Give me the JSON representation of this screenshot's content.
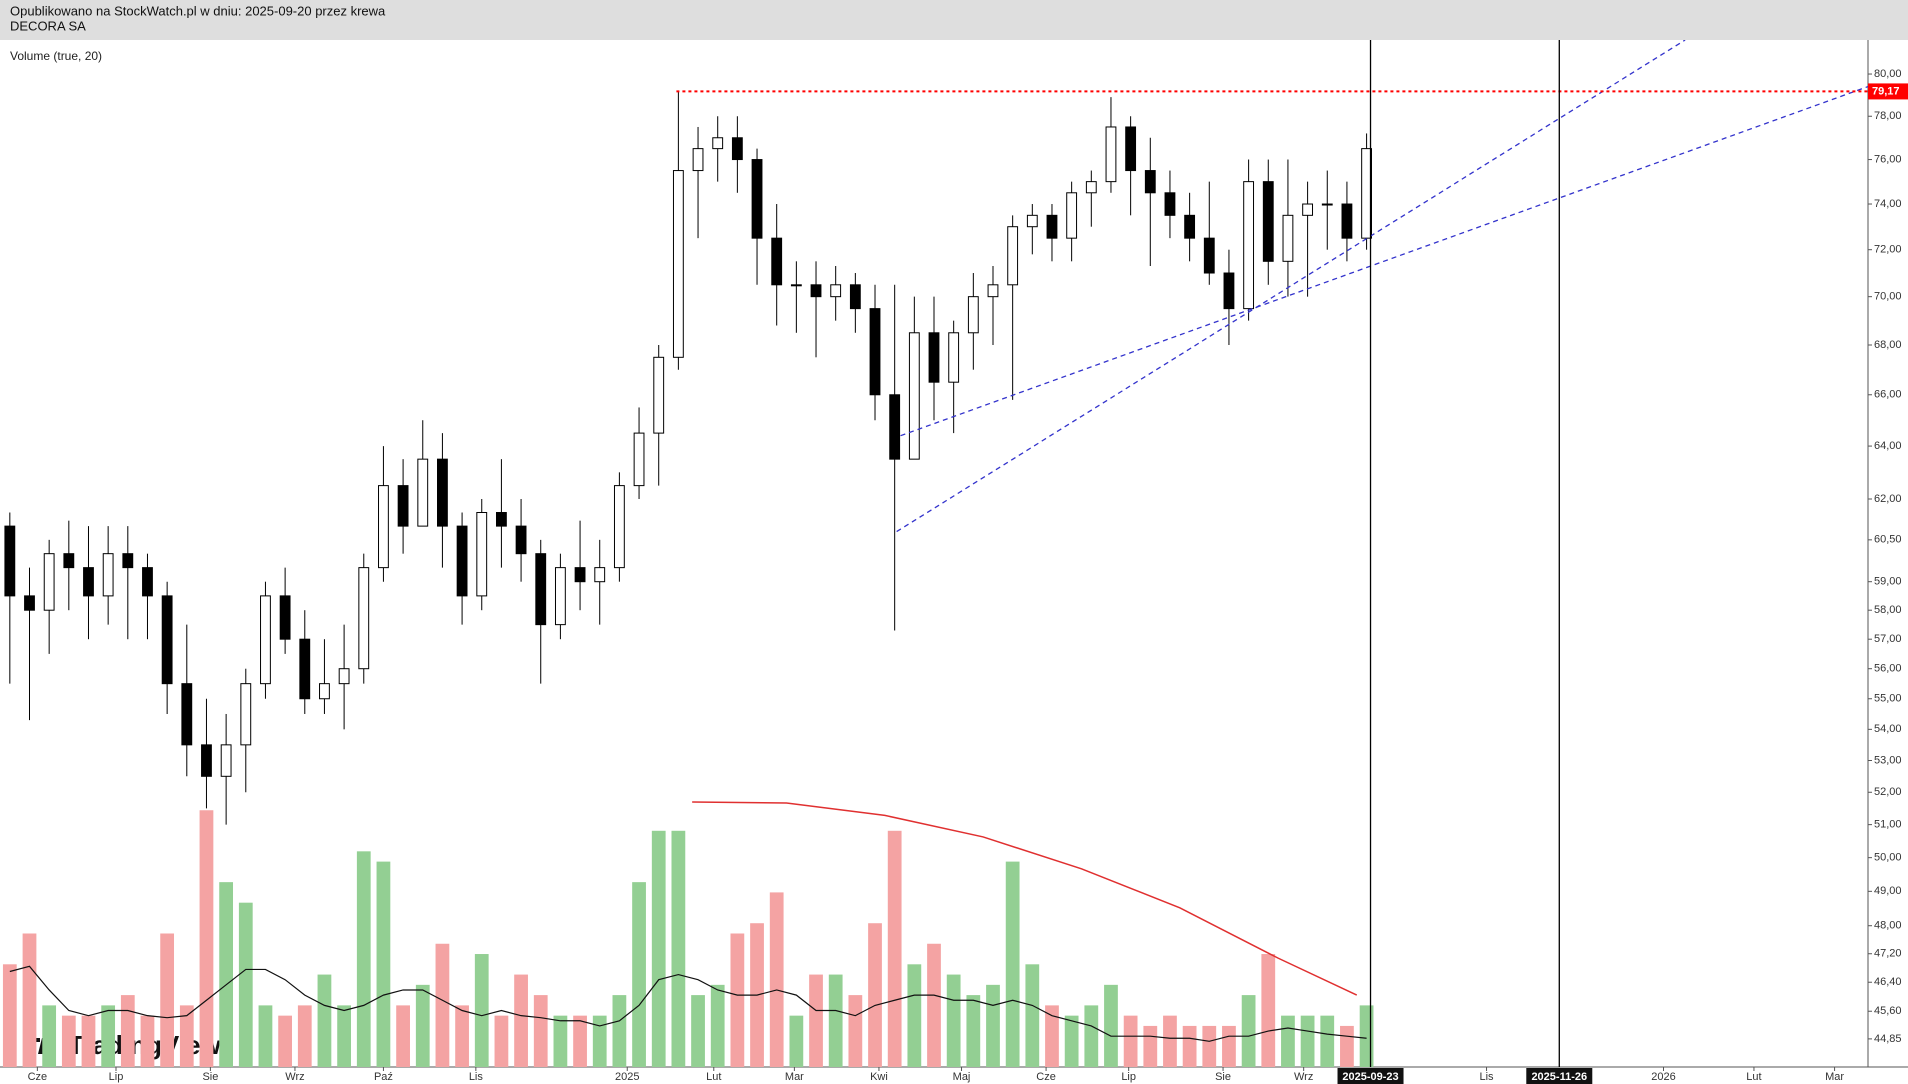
{
  "header": {
    "line1": "Opublikowano na StockWatch.pl w dniu: 2025-09-20 przez krewa",
    "line2": "DECORA SA"
  },
  "chart_data": {
    "type": "candlestick",
    "indicator_label": "Volume (true, 20)",
    "watermark": "TradingView",
    "log_scale": true,
    "xlim": [
      0,
      95
    ],
    "ylim": [
      44.1,
      81.65
    ],
    "y2lim": [
      0,
      100
    ],
    "xticks": [
      {
        "value": 1.9,
        "label": "Cze"
      },
      {
        "value": 5.9,
        "label": "Lip"
      },
      {
        "value": 10.7,
        "label": "Sie"
      },
      {
        "value": 15,
        "label": "Wrz"
      },
      {
        "value": 19.5,
        "label": "Paź"
      },
      {
        "value": 24.2,
        "label": "Lis"
      },
      {
        "value": 31.9,
        "label": "2025"
      },
      {
        "value": 36.3,
        "label": "Lut"
      },
      {
        "value": 40.4,
        "label": "Mar"
      },
      {
        "value": 44.7,
        "label": "Kwi"
      },
      {
        "value": 48.9,
        "label": "Maj"
      },
      {
        "value": 53.2,
        "label": "Cze"
      },
      {
        "value": 57.4,
        "label": "Lip"
      },
      {
        "value": 62.2,
        "label": "Sie"
      },
      {
        "value": 66.3,
        "label": "Wrz"
      },
      {
        "value": 75.6,
        "label": "Lis"
      },
      {
        "value": 84.6,
        "label": "2026"
      },
      {
        "value": 89.2,
        "label": "Lut"
      },
      {
        "value": 93.3,
        "label": "Mar"
      }
    ],
    "yticks": [
      {
        "value": 80,
        "label": "80,00"
      },
      {
        "value": 78,
        "label": "78,00"
      },
      {
        "value": 76,
        "label": "76,00"
      },
      {
        "value": 74,
        "label": "74,00"
      },
      {
        "value": 72,
        "label": "72,00"
      },
      {
        "value": 70,
        "label": "70,00"
      },
      {
        "value": 68,
        "label": "68,00"
      },
      {
        "value": 66,
        "label": "66,00"
      },
      {
        "value": 64,
        "label": "64,00"
      },
      {
        "value": 62,
        "label": "62,00"
      },
      {
        "value": 60.5,
        "label": "60,50"
      },
      {
        "value": 59,
        "label": "59,00"
      },
      {
        "value": 58,
        "label": "58,00"
      },
      {
        "value": 57,
        "label": "57,00"
      },
      {
        "value": 56,
        "label": "56,00"
      },
      {
        "value": 55,
        "label": "55,00"
      },
      {
        "value": 54,
        "label": "54,00"
      },
      {
        "value": 53,
        "label": "53,00"
      },
      {
        "value": 52,
        "label": "52,00"
      },
      {
        "value": 51,
        "label": "51,00"
      },
      {
        "value": 50,
        "label": "50,00"
      },
      {
        "value": 49,
        "label": "49,00"
      },
      {
        "value": 48,
        "label": "48,00"
      },
      {
        "value": 47.2,
        "label": "47,20"
      },
      {
        "value": 46.4,
        "label": "46,40"
      },
      {
        "value": 45.6,
        "label": "45,60"
      },
      {
        "value": 44.85,
        "label": "44,85"
      }
    ],
    "x": [
      0.5,
      1.5,
      2.5,
      3.5,
      4.5,
      5.5,
      6.5,
      7.5,
      8.5,
      9.5,
      10.5,
      11.5,
      12.5,
      13.5,
      14.5,
      15.5,
      16.5,
      17.5,
      18.5,
      19.5,
      20.5,
      21.5,
      22.5,
      23.5,
      24.5,
      25.5,
      26.5,
      27.5,
      28.5,
      29.5,
      30.5,
      31.5,
      32.5,
      33.5,
      34.5,
      35.5,
      36.5,
      37.5,
      38.5,
      39.5,
      40.5,
      41.5,
      42.5,
      43.5,
      44.5,
      45.5,
      46.5,
      47.5,
      48.5,
      49.5,
      50.5,
      51.5,
      52.5,
      53.5,
      54.5,
      55.5,
      56.5,
      57.5,
      58.5,
      59.5,
      60.5,
      61.5,
      62.5,
      63.5,
      64.5,
      65.5,
      66.5,
      67.5,
      68.5,
      69.5
    ],
    "open": [
      61,
      58.5,
      58,
      60,
      59.5,
      58.5,
      60,
      59.5,
      58.5,
      55.5,
      53.5,
      52.5,
      53.5,
      55.5,
      58.5,
      57,
      55,
      55.5,
      56,
      59.5,
      62.5,
      61,
      63.5,
      61,
      58.5,
      61.5,
      61,
      60,
      57.5,
      59.5,
      59,
      59.5,
      62.5,
      64.5,
      67.5,
      75.5,
      76.5,
      77,
      76,
      72.5,
      70.5,
      70.5,
      70,
      70.5,
      69.5,
      66,
      63.5,
      68.5,
      66.5,
      68.5,
      70,
      70.5,
      73,
      73.5,
      72.5,
      74.5,
      75,
      77.5,
      75.5,
      74.5,
      73.5,
      72.5,
      71,
      69.5,
      75,
      71.5,
      73.5,
      74,
      74,
      72.5
    ],
    "high": [
      61.5,
      59.5,
      60.5,
      61.2,
      61,
      61,
      61,
      60,
      59,
      57.5,
      55,
      54.5,
      56,
      59,
      59.5,
      58,
      57,
      57.5,
      60,
      64,
      63.5,
      65,
      64.5,
      61.5,
      62,
      63.5,
      62,
      60.5,
      60,
      61.2,
      60.5,
      63,
      65.5,
      68,
      79.2,
      77.5,
      78,
      78,
      76.5,
      74,
      71.5,
      71.5,
      71.3,
      71,
      70.5,
      70.5,
      70,
      70,
      69,
      71,
      71.3,
      73.5,
      74,
      74,
      75,
      75.5,
      78.9,
      78,
      77,
      75.5,
      74.5,
      75,
      72,
      76,
      76,
      76,
      75,
      75.5,
      75,
      77.2
    ],
    "low": [
      55.5,
      54.3,
      56.5,
      58,
      57,
      57.5,
      57,
      57,
      54.5,
      52.5,
      51.5,
      51,
      52,
      55,
      56.5,
      54.5,
      54.5,
      54,
      55.5,
      59,
      60,
      61,
      59.5,
      57.5,
      58,
      59.5,
      59,
      55.5,
      57,
      58,
      57.5,
      59,
      62,
      62.5,
      67,
      72.5,
      75,
      74.5,
      70.5,
      68.8,
      68.5,
      67.5,
      69,
      68.5,
      65,
      57.3,
      63.5,
      65,
      64.5,
      67,
      68,
      65.8,
      71.8,
      71.5,
      71.5,
      73,
      74.5,
      73.5,
      71.3,
      72.5,
      71.5,
      70.5,
      68,
      69,
      70.5,
      70,
      70,
      72,
      71.5,
      72
    ],
    "close": [
      58.5,
      58,
      60,
      59.5,
      58.5,
      60,
      59.5,
      58.5,
      55.5,
      53.5,
      52.5,
      53.5,
      55.5,
      58.5,
      57,
      55,
      55.5,
      56,
      59.5,
      62.5,
      61,
      63.5,
      61,
      58.5,
      61.5,
      61,
      60,
      57.5,
      59.5,
      59,
      59.5,
      62.5,
      64.5,
      67.5,
      75.5,
      76.5,
      77,
      76,
      72.5,
      70.5,
      70.5,
      70,
      70.5,
      69.5,
      66,
      63.5,
      68.5,
      66.5,
      68.5,
      70,
      70.5,
      73,
      73.5,
      72.5,
      74.5,
      75,
      77.5,
      75.5,
      74.5,
      73.5,
      72.5,
      71,
      69.5,
      75,
      71.5,
      73.5,
      74,
      74,
      72.5,
      76.5
    ],
    "volume": [
      10,
      13,
      6,
      5,
      5,
      6,
      7,
      5,
      13,
      6,
      25,
      18,
      16,
      6,
      5,
      6,
      9,
      6,
      21,
      20,
      6,
      8,
      12,
      6,
      11,
      5,
      9,
      7,
      5,
      5,
      5,
      7,
      18,
      23,
      23,
      7,
      8,
      13,
      14,
      17,
      5,
      9,
      9,
      7,
      14,
      23,
      10,
      12,
      9,
      7,
      8,
      20,
      10,
      6,
      5,
      6,
      8,
      5,
      4,
      5,
      4,
      4,
      4,
      7,
      11,
      5,
      5,
      5,
      4,
      6
    ],
    "volume_ma": [
      9.3,
      9.8,
      7.5,
      5.5,
      5,
      5.5,
      5.5,
      5,
      4.8,
      5,
      6.5,
      8,
      9.5,
      9.5,
      8.5,
      7,
      6,
      5.5,
      6,
      7,
      7.5,
      7.5,
      6.5,
      5.5,
      5,
      5.5,
      5,
      4.8,
      4.5,
      4.5,
      4,
      4.5,
      6,
      8.5,
      9,
      8.5,
      7.5,
      7,
      7,
      7.5,
      7,
      5.5,
      5.5,
      5,
      6,
      6.5,
      7,
      7,
      6.5,
      6.5,
      6,
      6.5,
      6,
      5,
      4.5,
      4,
      3,
      3,
      3,
      2.8,
      2.8,
      2.5,
      3,
      3,
      3.5,
      3.8,
      3.5,
      3.2,
      3,
      2.8
    ],
    "colors": {
      "up_volume": "#93cf93",
      "down_volume": "#f4a3a3",
      "ma": "#111111",
      "trend": "#3333cc",
      "arc": "#e03030"
    },
    "hline": {
      "value": 79.17,
      "label": "79,17",
      "x_start": 34.4,
      "color": "#ff0000"
    },
    "trendlines": [
      {
        "x": [
          45.6,
          85.7
        ],
        "y": [
          60.8,
          81.65
        ]
      },
      {
        "x": [
          45.8,
          95
        ],
        "y": [
          64.4,
          79.4
        ]
      }
    ],
    "vlines": [
      {
        "value": 69.7,
        "label": "2025-09-23"
      },
      {
        "value": 79.3,
        "label": "2025-11-26"
      }
    ],
    "arc": {
      "x": [
        35.2,
        40,
        45,
        50,
        55,
        60,
        65,
        69
      ],
      "y": [
        25.8,
        25.7,
        24.5,
        22.4,
        19.3,
        15.5,
        10.6,
        7
      ]
    }
  }
}
